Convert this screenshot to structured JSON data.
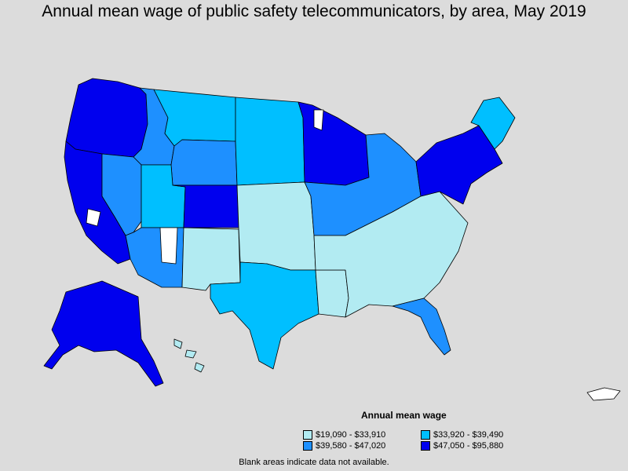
{
  "title": "Annual mean wage of public safety telecommunicators, by area, May 2019",
  "legend": {
    "title": "Annual mean wage",
    "items": [
      {
        "label": "$19,090 - $33,910",
        "color": "#b2ebf2"
      },
      {
        "label": "$33,920 - $39,490",
        "color": "#00bfff"
      },
      {
        "label": "$39,580 - $47,020",
        "color": "#1e90ff"
      },
      {
        "label": "$47,050 - $95,880",
        "color": "#0000ee"
      }
    ]
  },
  "footnote": "Blank areas indicate data not available.",
  "colors": {
    "background": "#dcdcdc",
    "no_data": "#ffffff",
    "border": "#000000"
  },
  "map_regions": [
    {
      "region": "Pacific Northwest",
      "class": 3
    },
    {
      "region": "California coast",
      "class": 3
    },
    {
      "region": "Nevada",
      "class": 2
    },
    {
      "region": "Idaho",
      "class": 2
    },
    {
      "region": "Montana",
      "class": 1
    },
    {
      "region": "Wyoming",
      "class": 2
    },
    {
      "region": "Colorado Front Range",
      "class": 3
    },
    {
      "region": "Utah",
      "class": 1
    },
    {
      "region": "Arizona",
      "class": 2
    },
    {
      "region": "New Mexico",
      "class": 0
    },
    {
      "region": "Dakotas",
      "class": 1
    },
    {
      "region": "Minnesota",
      "class": 3
    },
    {
      "region": "Great Plains",
      "class": 0
    },
    {
      "region": "Texas",
      "class": 1
    },
    {
      "region": "Texas east",
      "class": 0
    },
    {
      "region": "Midwest",
      "class": 2
    },
    {
      "region": "Southeast",
      "class": 0
    },
    {
      "region": "Florida",
      "class": 2
    },
    {
      "region": "Northeast corridor",
      "class": 3
    },
    {
      "region": "Maine",
      "class": 1
    },
    {
      "region": "Alaska",
      "class": 3
    },
    {
      "region": "Hawaii",
      "class": 0
    }
  ]
}
